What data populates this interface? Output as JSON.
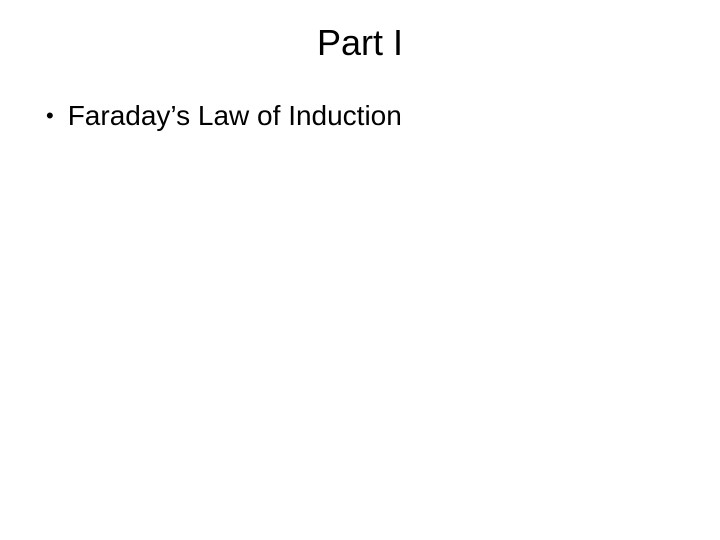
{
  "slide": {
    "title": "Part I",
    "bullets": [
      {
        "text": "Faraday’s Law of Induction"
      }
    ],
    "colors": {
      "background": "#ffffff",
      "text": "#000000"
    },
    "typography": {
      "title_fontsize": 36,
      "body_fontsize": 28,
      "font_family": "Arial"
    }
  }
}
